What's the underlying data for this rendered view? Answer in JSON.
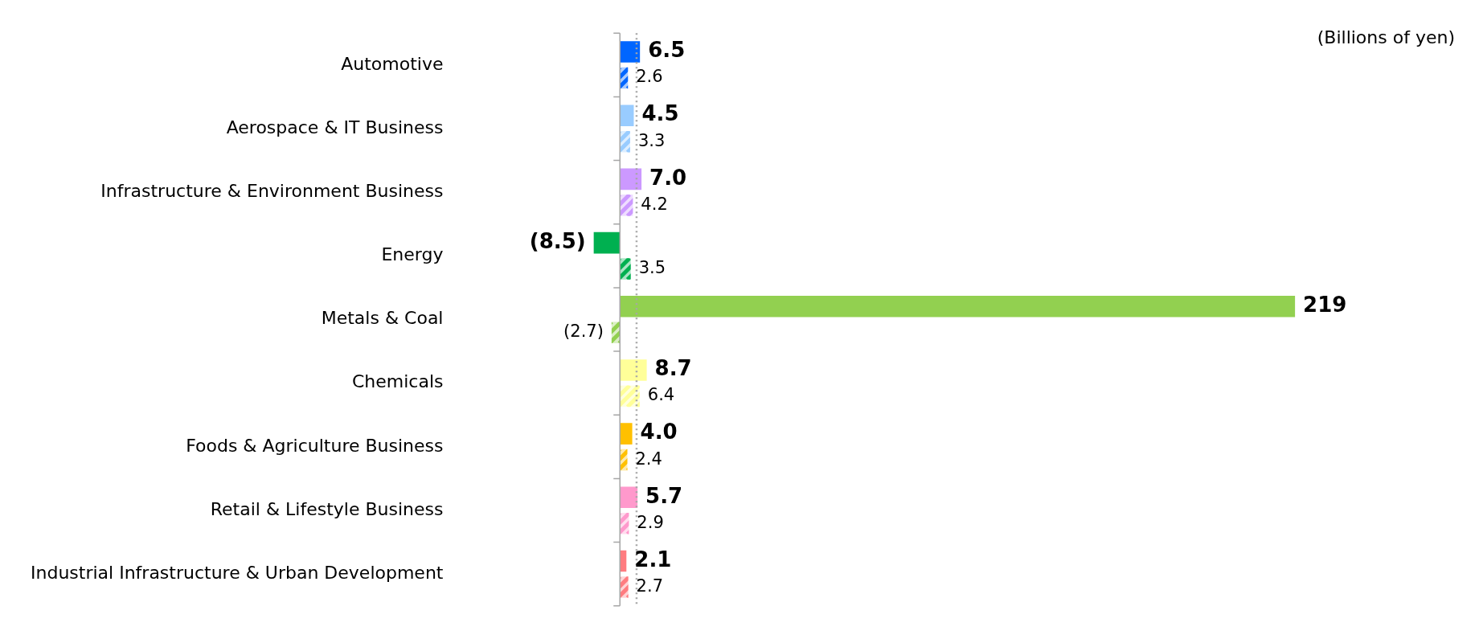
{
  "chart_data": {
    "type": "bar",
    "orientation": "horizontal",
    "categories": [
      "Automotive",
      "Aerospace & IT Business",
      "Infrastructure & Environment Business",
      "Energy",
      "Metals & Coal",
      "Chemicals",
      "Foods & Agriculture Business",
      "Retail & Lifestyle Business",
      "Industrial Infrastructure & Urban Development"
    ],
    "series": [
      {
        "colors": [
          "#0066ff",
          "#99ccff",
          "#cc99ff",
          "#00b050",
          "#92d050",
          "#ffff99",
          "#ffc000",
          "#ff99cc",
          "#ff7c80"
        ],
        "values": [
          6.5,
          4.5,
          7.0,
          -8.5,
          219,
          8.7,
          4.0,
          5.7,
          2.1
        ],
        "value_labels": [
          "6.5",
          "4.5",
          "7.0",
          "(8.5)",
          "219",
          "8.7",
          "4.0",
          "5.7",
          "2.1"
        ]
      },
      {
        "colors": [
          "#0066ff",
          "#99ccff",
          "#cc99ff",
          "#00b050",
          "#92d050",
          "#ffff99",
          "#ffc000",
          "#ff99cc",
          "#ff7c80"
        ],
        "values": [
          2.6,
          3.3,
          4.2,
          3.5,
          -2.7,
          6.4,
          2.4,
          2.9,
          2.7
        ],
        "value_labels": [
          "2.6",
          "3.3",
          "4.2",
          "3.5",
          "(2.7)",
          "6.4",
          "2.4",
          "2.9",
          "2.7"
        ]
      }
    ],
    "ref_lines": [
      {
        "axis": "x",
        "value": 5.4,
        "color": "#a6a6a6",
        "line_style": "dotted"
      }
    ],
    "annotations": [
      "(Billions of yen)"
    ],
    "legend": false,
    "tick_labels": "y"
  }
}
